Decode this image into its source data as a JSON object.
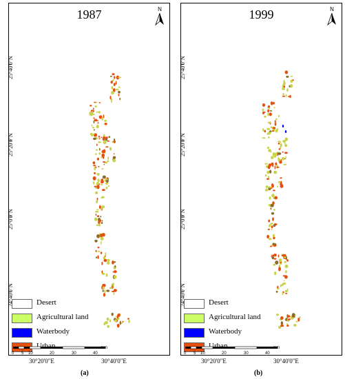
{
  "colors": {
    "desert": "#ffffff",
    "agricultural": "#ccff66",
    "waterbody": "#0000ff",
    "urban": "#e6500f",
    "agri_patch": "#c8d24a"
  },
  "north_label": "N",
  "legend": [
    {
      "label": "Desert",
      "color_key": "desert"
    },
    {
      "label": "Agricultural land",
      "color_key": "agricultural"
    },
    {
      "label": "Waterbody",
      "color_key": "waterbody"
    },
    {
      "label": "Urban",
      "color_key": "urban"
    }
  ],
  "scale": {
    "ticks": [
      "0",
      "5",
      "10",
      "20",
      "30",
      "40"
    ],
    "unit": "Km"
  },
  "latitudes": [
    "25°40'0\"N",
    "25°20'0\"N",
    "25°0'0\"N",
    "24°40'0\"N"
  ],
  "longitudes": [
    "30°20'0\"E",
    "30°40'0\"E"
  ],
  "panels": [
    {
      "year": "1987",
      "caption": "(a)"
    },
    {
      "year": "1999",
      "caption": "(b)"
    }
  ]
}
